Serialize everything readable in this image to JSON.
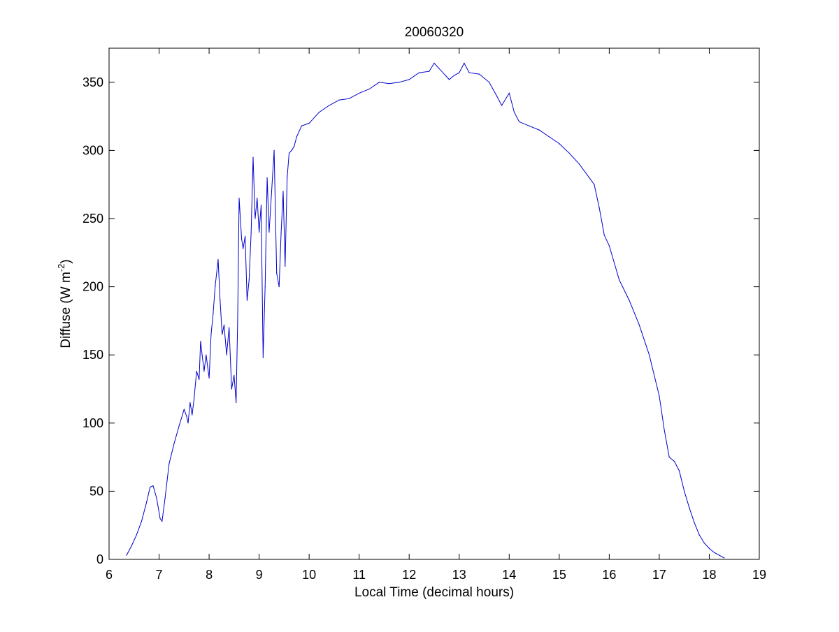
{
  "chart_data": {
    "type": "line",
    "title": "20060320",
    "xlabel": "Local Time (decimal hours)",
    "ylabel": {
      "prefix": "Diffuse (W m",
      "superscript": "-2",
      "suffix": ")"
    },
    "xlim": [
      6,
      19
    ],
    "ylim": [
      0,
      375
    ],
    "xticks": [
      6,
      7,
      8,
      9,
      10,
      11,
      12,
      13,
      14,
      15,
      16,
      17,
      18,
      19
    ],
    "yticks": [
      0,
      50,
      100,
      150,
      200,
      250,
      300,
      350
    ],
    "grid": false,
    "legend": "none",
    "series_color": "#0000cc",
    "series": [
      {
        "x": [
          6.35,
          6.45,
          6.55,
          6.65,
          6.75,
          6.82,
          6.88,
          6.95,
          7.02,
          7.06,
          7.12,
          7.2,
          7.3,
          7.4,
          7.5,
          7.55,
          7.58,
          7.62,
          7.66,
          7.7,
          7.75,
          7.8,
          7.83,
          7.86,
          7.9,
          7.94,
          8.0,
          8.04,
          8.08,
          8.12,
          8.18,
          8.22,
          8.26,
          8.3,
          8.35,
          8.4,
          8.45,
          8.5,
          8.54,
          8.57,
          8.6,
          8.65,
          8.68,
          8.72,
          8.76,
          8.8,
          8.84,
          8.88,
          8.92,
          8.96,
          9.0,
          9.04,
          9.08,
          9.12,
          9.16,
          9.2,
          9.25,
          9.3,
          9.35,
          9.4,
          9.44,
          9.48,
          9.52,
          9.56,
          9.6,
          9.65,
          9.7,
          9.75,
          9.85,
          10.0,
          10.2,
          10.4,
          10.6,
          10.8,
          11.0,
          11.2,
          11.4,
          11.6,
          11.8,
          12.0,
          12.2,
          12.4,
          12.5,
          12.6,
          12.8,
          12.9,
          13.0,
          13.1,
          13.2,
          13.4,
          13.6,
          13.75,
          13.85,
          14.0,
          14.1,
          14.2,
          14.4,
          14.6,
          14.8,
          15.0,
          15.2,
          15.4,
          15.6,
          15.7,
          15.8,
          15.9,
          16.0,
          16.2,
          16.4,
          16.6,
          16.8,
          17.0,
          17.1,
          17.2,
          17.3,
          17.4,
          17.5,
          17.6,
          17.7,
          17.8,
          17.9,
          18.0,
          18.1,
          18.2,
          18.3
        ],
        "y": [
          3,
          10,
          18,
          28,
          42,
          53,
          54,
          45,
          30,
          28,
          45,
          70,
          85,
          98,
          110,
          105,
          100,
          115,
          106,
          118,
          138,
          132,
          160,
          150,
          138,
          150,
          133,
          165,
          180,
          200,
          220,
          190,
          165,
          172,
          150,
          170,
          125,
          135,
          115,
          175,
          265,
          235,
          228,
          237,
          190,
          205,
          240,
          295,
          250,
          265,
          240,
          260,
          148,
          200,
          280,
          240,
          270,
          300,
          210,
          200,
          240,
          270,
          215,
          280,
          298,
          300,
          303,
          310,
          318,
          320,
          328,
          333,
          337,
          338,
          342,
          345,
          350,
          349,
          350,
          352,
          357,
          358,
          364,
          360,
          352,
          355,
          357,
          364,
          357,
          356,
          350,
          340,
          333,
          342,
          328,
          321,
          318,
          315,
          310,
          305,
          298,
          290,
          280,
          275,
          258,
          238,
          230,
          205,
          190,
          172,
          150,
          120,
          95,
          75,
          72,
          65,
          50,
          38,
          27,
          18,
          12,
          8,
          5,
          3,
          1
        ]
      }
    ]
  }
}
